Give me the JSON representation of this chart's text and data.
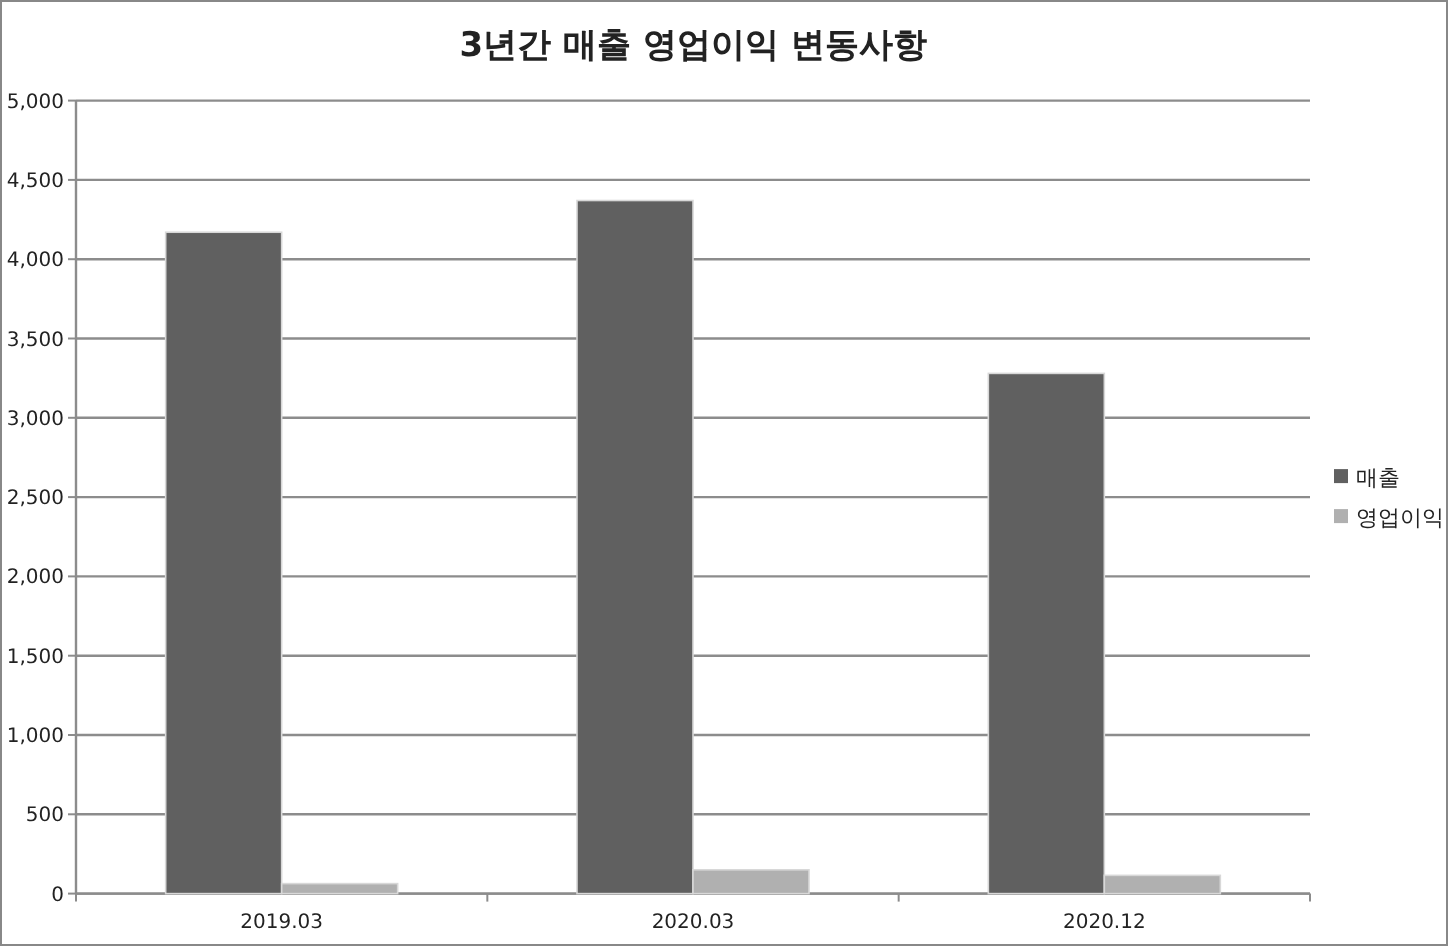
{
  "chart_data": {
    "type": "bar",
    "title": "3년간 매출 영업이익 변동사항",
    "categories": [
      "2019.03",
      "2020.03",
      "2020.12"
    ],
    "series": [
      {
        "name": "매출",
        "color": "#606060",
        "values": [
          4170,
          4370,
          3280
        ]
      },
      {
        "name": "영업이익",
        "color": "#b0b0b0",
        "values": [
          63,
          150,
          115
        ]
      }
    ],
    "ylim": [
      0,
      5000
    ],
    "yticks": [
      {
        "value": 0,
        "label": "0"
      },
      {
        "value": 500,
        "label": "500"
      },
      {
        "value": 1000,
        "label": "1,000"
      },
      {
        "value": 1500,
        "label": "1,500"
      },
      {
        "value": 2000,
        "label": "2,000"
      },
      {
        "value": 2500,
        "label": "2,500"
      },
      {
        "value": 3000,
        "label": "3,000"
      },
      {
        "value": 3500,
        "label": "3,500"
      },
      {
        "value": 4000,
        "label": "4,000"
      },
      {
        "value": 4500,
        "label": "4,500"
      },
      {
        "value": 5000,
        "label": "5,000"
      }
    ],
    "grid": "y",
    "legend": "right"
  }
}
